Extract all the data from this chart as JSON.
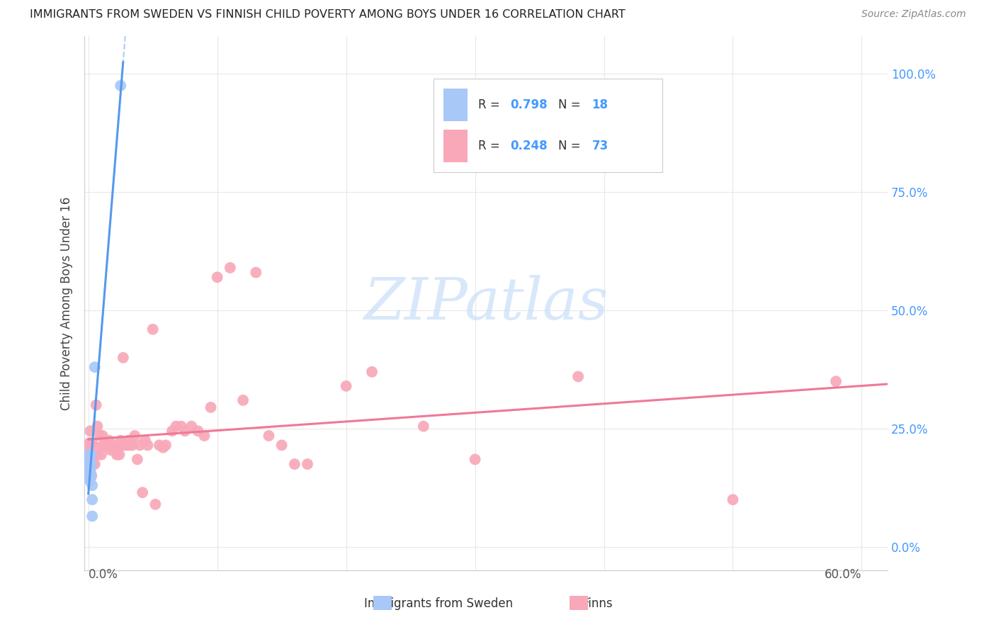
{
  "title": "IMMIGRANTS FROM SWEDEN VS FINNISH CHILD POVERTY AMONG BOYS UNDER 16 CORRELATION CHART",
  "source": "Source: ZipAtlas.com",
  "ylabel": "Child Poverty Among Boys Under 16",
  "ytick_vals": [
    0.0,
    0.25,
    0.5,
    0.75,
    1.0
  ],
  "ytick_labels": [
    "0.0%",
    "25.0%",
    "50.0%",
    "75.0%",
    "100.0%"
  ],
  "xlim": [
    -0.003,
    0.62
  ],
  "ylim": [
    -0.05,
    1.08
  ],
  "color_sweden": "#a8c8f8",
  "color_finns": "#f8a8b8",
  "color_blue_text": "#4499ff",
  "color_pink_line": "#f07898",
  "color_blue_line": "#5599ee",
  "color_blue_dash": "#aaccf8",
  "watermark_color": "#c8dff8",
  "grid_color": "#e8e8e8",
  "legend_R_sweden": "0.798",
  "legend_N_sweden": "18",
  "legend_R_finns": "0.248",
  "legend_N_finns": "73",
  "sweden_x": [
    0.0005,
    0.0005,
    0.0005,
    0.0008,
    0.0008,
    0.001,
    0.001,
    0.001,
    0.0015,
    0.0015,
    0.002,
    0.002,
    0.002,
    0.003,
    0.003,
    0.005,
    0.025,
    0.003
  ],
  "sweden_y": [
    0.155,
    0.175,
    0.195,
    0.17,
    0.18,
    0.14,
    0.16,
    0.19,
    0.165,
    0.145,
    0.175,
    0.195,
    0.155,
    0.13,
    0.1,
    0.38,
    0.975,
    0.065
  ],
  "finns_x": [
    0.0003,
    0.0005,
    0.0007,
    0.001,
    0.001,
    0.0015,
    0.002,
    0.002,
    0.0025,
    0.003,
    0.003,
    0.004,
    0.005,
    0.006,
    0.007,
    0.007,
    0.008,
    0.009,
    0.01,
    0.011,
    0.012,
    0.013,
    0.014,
    0.015,
    0.016,
    0.017,
    0.018,
    0.019,
    0.02,
    0.022,
    0.024,
    0.025,
    0.026,
    0.027,
    0.028,
    0.03,
    0.031,
    0.032,
    0.034,
    0.036,
    0.038,
    0.04,
    0.042,
    0.044,
    0.046,
    0.05,
    0.052,
    0.055,
    0.058,
    0.06,
    0.065,
    0.068,
    0.072,
    0.075,
    0.08,
    0.085,
    0.09,
    0.095,
    0.1,
    0.11,
    0.12,
    0.13,
    0.14,
    0.15,
    0.16,
    0.17,
    0.2,
    0.22,
    0.26,
    0.3,
    0.38,
    0.5,
    0.58
  ],
  "finns_y": [
    0.21,
    0.195,
    0.175,
    0.22,
    0.155,
    0.245,
    0.195,
    0.175,
    0.15,
    0.22,
    0.175,
    0.19,
    0.175,
    0.3,
    0.195,
    0.255,
    0.21,
    0.235,
    0.195,
    0.235,
    0.215,
    0.215,
    0.215,
    0.215,
    0.225,
    0.205,
    0.21,
    0.215,
    0.21,
    0.195,
    0.195,
    0.225,
    0.215,
    0.4,
    0.215,
    0.215,
    0.225,
    0.215,
    0.215,
    0.235,
    0.185,
    0.215,
    0.115,
    0.225,
    0.215,
    0.46,
    0.09,
    0.215,
    0.21,
    0.215,
    0.245,
    0.255,
    0.255,
    0.245,
    0.255,
    0.245,
    0.235,
    0.295,
    0.57,
    0.59,
    0.31,
    0.58,
    0.235,
    0.215,
    0.175,
    0.175,
    0.34,
    0.37,
    0.255,
    0.185,
    0.36,
    0.1,
    0.35
  ]
}
